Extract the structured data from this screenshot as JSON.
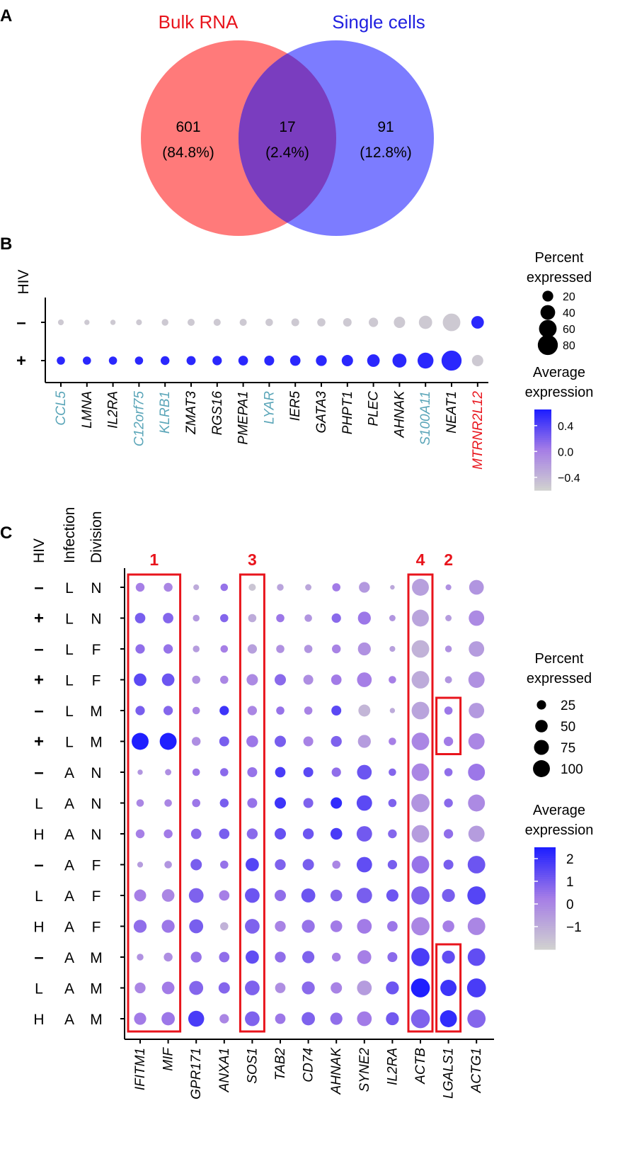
{
  "panel_labels": [
    "A",
    "B",
    "C"
  ],
  "colors": {
    "bulk": "#ff5a5a",
    "single": "#5959ff",
    "overlap": "#7a3dbf",
    "low": "#d0d0d0",
    "high": "#1f1fff",
    "red": "#e8141c",
    "teal": "#5aa5b8",
    "box": "#e8141c"
  },
  "chart_data": [
    {
      "type": "venn",
      "sets": [
        {
          "name": "Bulk RNA",
          "count": "601",
          "percent": "(84.8%)"
        },
        {
          "name": "Single cells",
          "count": "91",
          "percent": "(12.8%)"
        }
      ],
      "intersection": {
        "count": "17",
        "percent": "(2.4%)"
      }
    },
    {
      "type": "scatter",
      "subtype": "dotplot",
      "ylabel": "HIV",
      "rows": [
        "–",
        "+"
      ],
      "genes": [
        {
          "name": "CCL5",
          "color": "teal"
        },
        {
          "name": "LMNA",
          "color": "black"
        },
        {
          "name": "IL2RA",
          "color": "black"
        },
        {
          "name": "C12orf75",
          "color": "teal"
        },
        {
          "name": "KLRB1",
          "color": "teal"
        },
        {
          "name": "ZMAT3",
          "color": "black"
        },
        {
          "name": "RGS16",
          "color": "black"
        },
        {
          "name": "PMEPA1",
          "color": "black"
        },
        {
          "name": "LYAR",
          "color": "teal"
        },
        {
          "name": "IER5",
          "color": "black"
        },
        {
          "name": "GATA3",
          "color": "black"
        },
        {
          "name": "PHPT1",
          "color": "black"
        },
        {
          "name": "PLEC",
          "color": "black"
        },
        {
          "name": "AHNAK",
          "color": "black"
        },
        {
          "name": "S100A11",
          "color": "teal"
        },
        {
          "name": "NEAT1",
          "color": "black"
        },
        {
          "name": "MTRNR2L12",
          "color": "red"
        }
      ],
      "percent_expressed": [
        [
          4,
          3,
          3,
          4,
          6,
          7,
          7,
          7,
          8,
          9,
          10,
          11,
          14,
          22,
          32,
          60,
          28
        ],
        [
          10,
          10,
          10,
          10,
          12,
          13,
          14,
          15,
          16,
          18,
          20,
          22,
          28,
          36,
          48,
          80,
          22
        ]
      ],
      "avg_expression": [
        [
          -0.55,
          -0.55,
          -0.55,
          -0.55,
          -0.55,
          -0.55,
          -0.55,
          -0.55,
          -0.55,
          -0.55,
          -0.55,
          -0.55,
          -0.55,
          -0.55,
          -0.55,
          -0.55,
          0.6
        ],
        [
          0.6,
          0.6,
          0.6,
          0.6,
          0.6,
          0.6,
          0.6,
          0.6,
          0.6,
          0.6,
          0.6,
          0.6,
          0.6,
          0.6,
          0.6,
          0.6,
          -0.55
        ]
      ],
      "legend": {
        "size_title": [
          "Percent",
          "expressed"
        ],
        "size_values": [
          20,
          40,
          60,
          80
        ],
        "color_title": [
          "Average",
          "expression"
        ],
        "color_ticks": [
          "0.4",
          "0.0",
          "−0.4"
        ],
        "color_tick_values": [
          0.4,
          0.0,
          -0.4
        ],
        "color_range": [
          -0.6,
          0.65
        ]
      }
    },
    {
      "type": "scatter",
      "subtype": "dotplot",
      "column_headers": [
        "HIV",
        "Infection",
        "Division"
      ],
      "rows": [
        [
          "–",
          "L",
          "N"
        ],
        [
          "+",
          "L",
          "N"
        ],
        [
          "–",
          "L",
          "F"
        ],
        [
          "+",
          "L",
          "F"
        ],
        [
          "–",
          "L",
          "M"
        ],
        [
          "+",
          "L",
          "M"
        ],
        [
          "–",
          "A",
          "N"
        ],
        [
          "L",
          "A",
          "N"
        ],
        [
          "H",
          "A",
          "N"
        ],
        [
          "–",
          "A",
          "F"
        ],
        [
          "L",
          "A",
          "F"
        ],
        [
          "H",
          "A",
          "F"
        ],
        [
          "–",
          "A",
          "M"
        ],
        [
          "L",
          "A",
          "M"
        ],
        [
          "H",
          "A",
          "M"
        ]
      ],
      "genes": [
        "IFITM1",
        "MIF",
        "GPR171",
        "ANXA1",
        "SOS1",
        "TAB2",
        "CD74",
        "AHNAK",
        "SYNE2",
        "IL2RA",
        "ACTB",
        "LGALS1",
        "ACTG1"
      ],
      "percent_expressed": [
        [
          12,
          12,
          4,
          8,
          7,
          6,
          5,
          10,
          20,
          2,
          55,
          4,
          40
        ],
        [
          18,
          18,
          6,
          10,
          10,
          10,
          8,
          14,
          30,
          5,
          55,
          5,
          45
        ],
        [
          14,
          14,
          6,
          8,
          14,
          10,
          10,
          12,
          30,
          4,
          60,
          6,
          45
        ],
        [
          28,
          28,
          10,
          10,
          22,
          22,
          16,
          18,
          40,
          8,
          60,
          7,
          50
        ],
        [
          14,
          14,
          8,
          14,
          14,
          10,
          10,
          16,
          25,
          3,
          60,
          10,
          45
        ],
        [
          55,
          55,
          12,
          16,
          24,
          22,
          16,
          20,
          30,
          8,
          60,
          14,
          50
        ],
        [
          3,
          5,
          8,
          10,
          16,
          18,
          16,
          14,
          40,
          8,
          60,
          10,
          55
        ],
        [
          8,
          8,
          10,
          12,
          16,
          22,
          16,
          22,
          45,
          10,
          65,
          12,
          55
        ],
        [
          12,
          12,
          18,
          18,
          20,
          22,
          20,
          24,
          45,
          12,
          60,
          14,
          50
        ],
        [
          4,
          8,
          22,
          10,
          32,
          20,
          22,
          10,
          45,
          14,
          60,
          16,
          60
        ],
        [
          25,
          28,
          40,
          18,
          40,
          22,
          36,
          24,
          45,
          26,
          65,
          30,
          65
        ],
        [
          30,
          30,
          36,
          10,
          40,
          20,
          30,
          24,
          40,
          18,
          65,
          24,
          60
        ],
        [
          6,
          12,
          20,
          18,
          32,
          20,
          26,
          12,
          35,
          16,
          65,
          30,
          60
        ],
        [
          20,
          28,
          36,
          22,
          40,
          18,
          30,
          22,
          40,
          30,
          70,
          50,
          70
        ],
        [
          26,
          32,
          48,
          14,
          40,
          18,
          32,
          26,
          40,
          30,
          70,
          55,
          65
        ]
      ],
      "avg_expression": [
        [
          0.2,
          0.0,
          -1.0,
          0.5,
          -1.7,
          -0.8,
          -0.9,
          0.3,
          -0.5,
          -0.9,
          -0.7,
          -0.3,
          -0.4
        ],
        [
          1.0,
          0.8,
          -0.5,
          0.8,
          -1.0,
          0.4,
          -0.4,
          0.7,
          0.4,
          -0.4,
          -0.8,
          -0.6,
          -0.1
        ],
        [
          0.6,
          0.5,
          -0.6,
          0.2,
          -0.7,
          -0.3,
          -0.4,
          0.1,
          -0.3,
          -0.7,
          -1.2,
          -0.3,
          -0.6
        ],
        [
          1.5,
          1.2,
          -0.3,
          0.0,
          -0.1,
          0.7,
          -0.2,
          0.3,
          0.2,
          0.2,
          -1.0,
          -0.4,
          -0.3
        ],
        [
          1.0,
          0.8,
          0.0,
          2.0,
          0.0,
          0.5,
          0.1,
          1.5,
          -1.3,
          -1.0,
          -0.8,
          0.4,
          -0.5
        ],
        [
          3.0,
          2.7,
          -0.2,
          1.0,
          0.4,
          1.0,
          0.1,
          0.9,
          -0.6,
          0.2,
          0.0,
          0.3,
          0.0
        ],
        [
          -0.4,
          -0.2,
          0.4,
          0.7,
          0.5,
          1.8,
          1.5,
          0.6,
          1.2,
          0.8,
          0.0,
          0.6,
          0.4
        ],
        [
          0.0,
          0.0,
          0.4,
          1.0,
          0.5,
          2.0,
          0.9,
          2.2,
          1.5,
          0.9,
          -0.4,
          0.7,
          -0.1
        ],
        [
          0.2,
          0.3,
          0.7,
          1.0,
          0.7,
          1.3,
          1.2,
          1.8,
          1.1,
          0.8,
          -0.6,
          0.6,
          -0.6
        ],
        [
          -0.6,
          -0.4,
          1.0,
          0.5,
          1.6,
          0.9,
          1.0,
          0.0,
          1.4,
          1.0,
          0.5,
          1.0,
          1.2
        ],
        [
          0.2,
          0.0,
          0.9,
          0.2,
          1.2,
          0.6,
          1.2,
          0.8,
          1.0,
          1.2,
          0.9,
          1.0,
          1.6
        ],
        [
          0.6,
          0.4,
          1.0,
          -1.2,
          0.9,
          0.1,
          0.5,
          0.3,
          0.3,
          0.4,
          0.0,
          0.2,
          0.0
        ],
        [
          -0.3,
          -0.2,
          0.5,
          0.6,
          1.4,
          0.6,
          0.9,
          0.2,
          0.2,
          0.7,
          1.8,
          1.4,
          1.4
        ],
        [
          0.0,
          0.3,
          0.8,
          0.8,
          0.9,
          -0.2,
          0.7,
          0.1,
          -0.6,
          1.2,
          2.6,
          2.0,
          1.8
        ],
        [
          0.3,
          0.4,
          1.8,
          0.0,
          0.9,
          0.4,
          0.9,
          0.6,
          0.3,
          1.1,
          0.9,
          2.2,
          0.8
        ]
      ],
      "highlight_boxes": [
        {
          "label": "1",
          "genes": [
            "IFITM1",
            "MIF"
          ],
          "rows": [
            0,
            14
          ]
        },
        {
          "label": "3",
          "genes": [
            "SOS1"
          ],
          "rows": [
            0,
            14
          ]
        },
        {
          "label": "4",
          "genes": [
            "ACTB"
          ],
          "rows": [
            0,
            14
          ]
        },
        {
          "label": "2",
          "genes": [
            "LGALS1"
          ],
          "rows": [
            4,
            5
          ]
        },
        {
          "label": "",
          "genes": [
            "LGALS1"
          ],
          "rows": [
            12,
            14
          ]
        }
      ],
      "legend": {
        "size_title": [
          "Percent",
          "expressed"
        ],
        "size_values": [
          25,
          50,
          75,
          100
        ],
        "color_title": [
          "Average",
          "expression"
        ],
        "color_ticks": [
          "2",
          "1",
          "0",
          "−1"
        ],
        "color_tick_values": [
          2,
          1,
          0,
          -1
        ],
        "color_range": [
          -2.0,
          2.5
        ]
      }
    }
  ]
}
